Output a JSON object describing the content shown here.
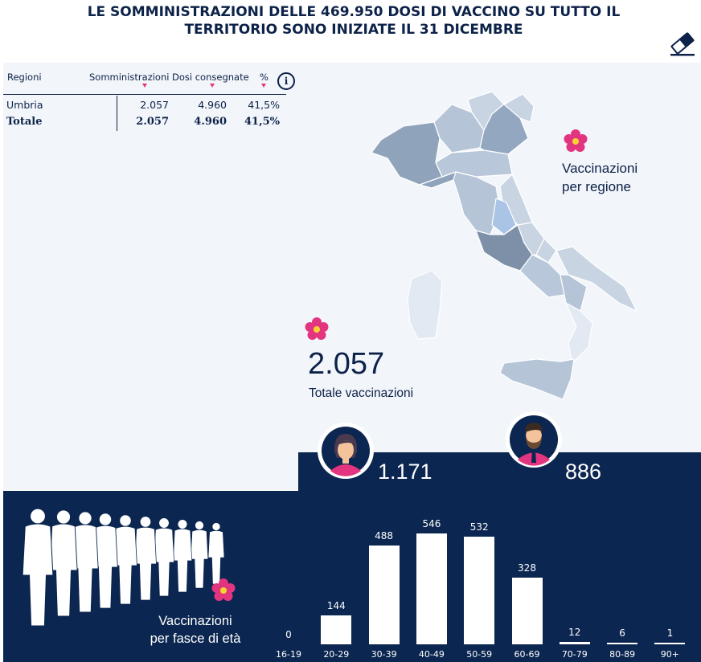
{
  "header": {
    "title_line1": "LE SOMMINISTRAZIONI DELLE 469.950 DOSI DI VACCINO SU TUTTO IL",
    "title_line2": "TERRITORIO SONO INIZIATE IL 31 DICEMBRE",
    "eraser_icon": "eraser-icon"
  },
  "table": {
    "headers": {
      "region": "Regioni",
      "administrations": "Somministrazioni",
      "delivered": "Dosi consegnate",
      "percent": "%"
    },
    "info_label": "i",
    "rows": [
      {
        "region": "Umbria",
        "administrations": "2.057",
        "delivered": "4.960",
        "percent": "41,5%"
      }
    ],
    "total": {
      "region": "Totale",
      "administrations": "2.057",
      "delivered": "4.960",
      "percent": "41,5%"
    }
  },
  "map": {
    "label_line1": "Vaccinazioni",
    "label_line2": "per regione",
    "highlight_color": "#a9c4e4",
    "base_color": "#c9d6e5"
  },
  "summary": {
    "total_value": "2.057",
    "total_label": "Totale vaccinazioni"
  },
  "gender": {
    "female_value": "1.171",
    "male_value": "886"
  },
  "age": {
    "label_line1": "Vaccinazioni",
    "label_line2": "per fasce di età"
  },
  "chart_data": {
    "type": "bar",
    "categories": [
      "16-19",
      "20-29",
      "30-39",
      "40-49",
      "50-59",
      "60-69",
      "70-79",
      "80-89",
      "90+"
    ],
    "values": [
      0,
      144,
      488,
      546,
      532,
      328,
      12,
      6,
      1
    ],
    "labels": [
      "0",
      "144",
      "488",
      "546",
      "532",
      "328",
      "12",
      "6",
      "1"
    ],
    "title": "",
    "xlabel": "",
    "ylabel": "",
    "ylim": [
      0,
      546
    ],
    "grid": false
  },
  "colors": {
    "navy": "#0b2650",
    "accent_pink": "#e3357f",
    "light_panel": "#f2f5fa"
  }
}
